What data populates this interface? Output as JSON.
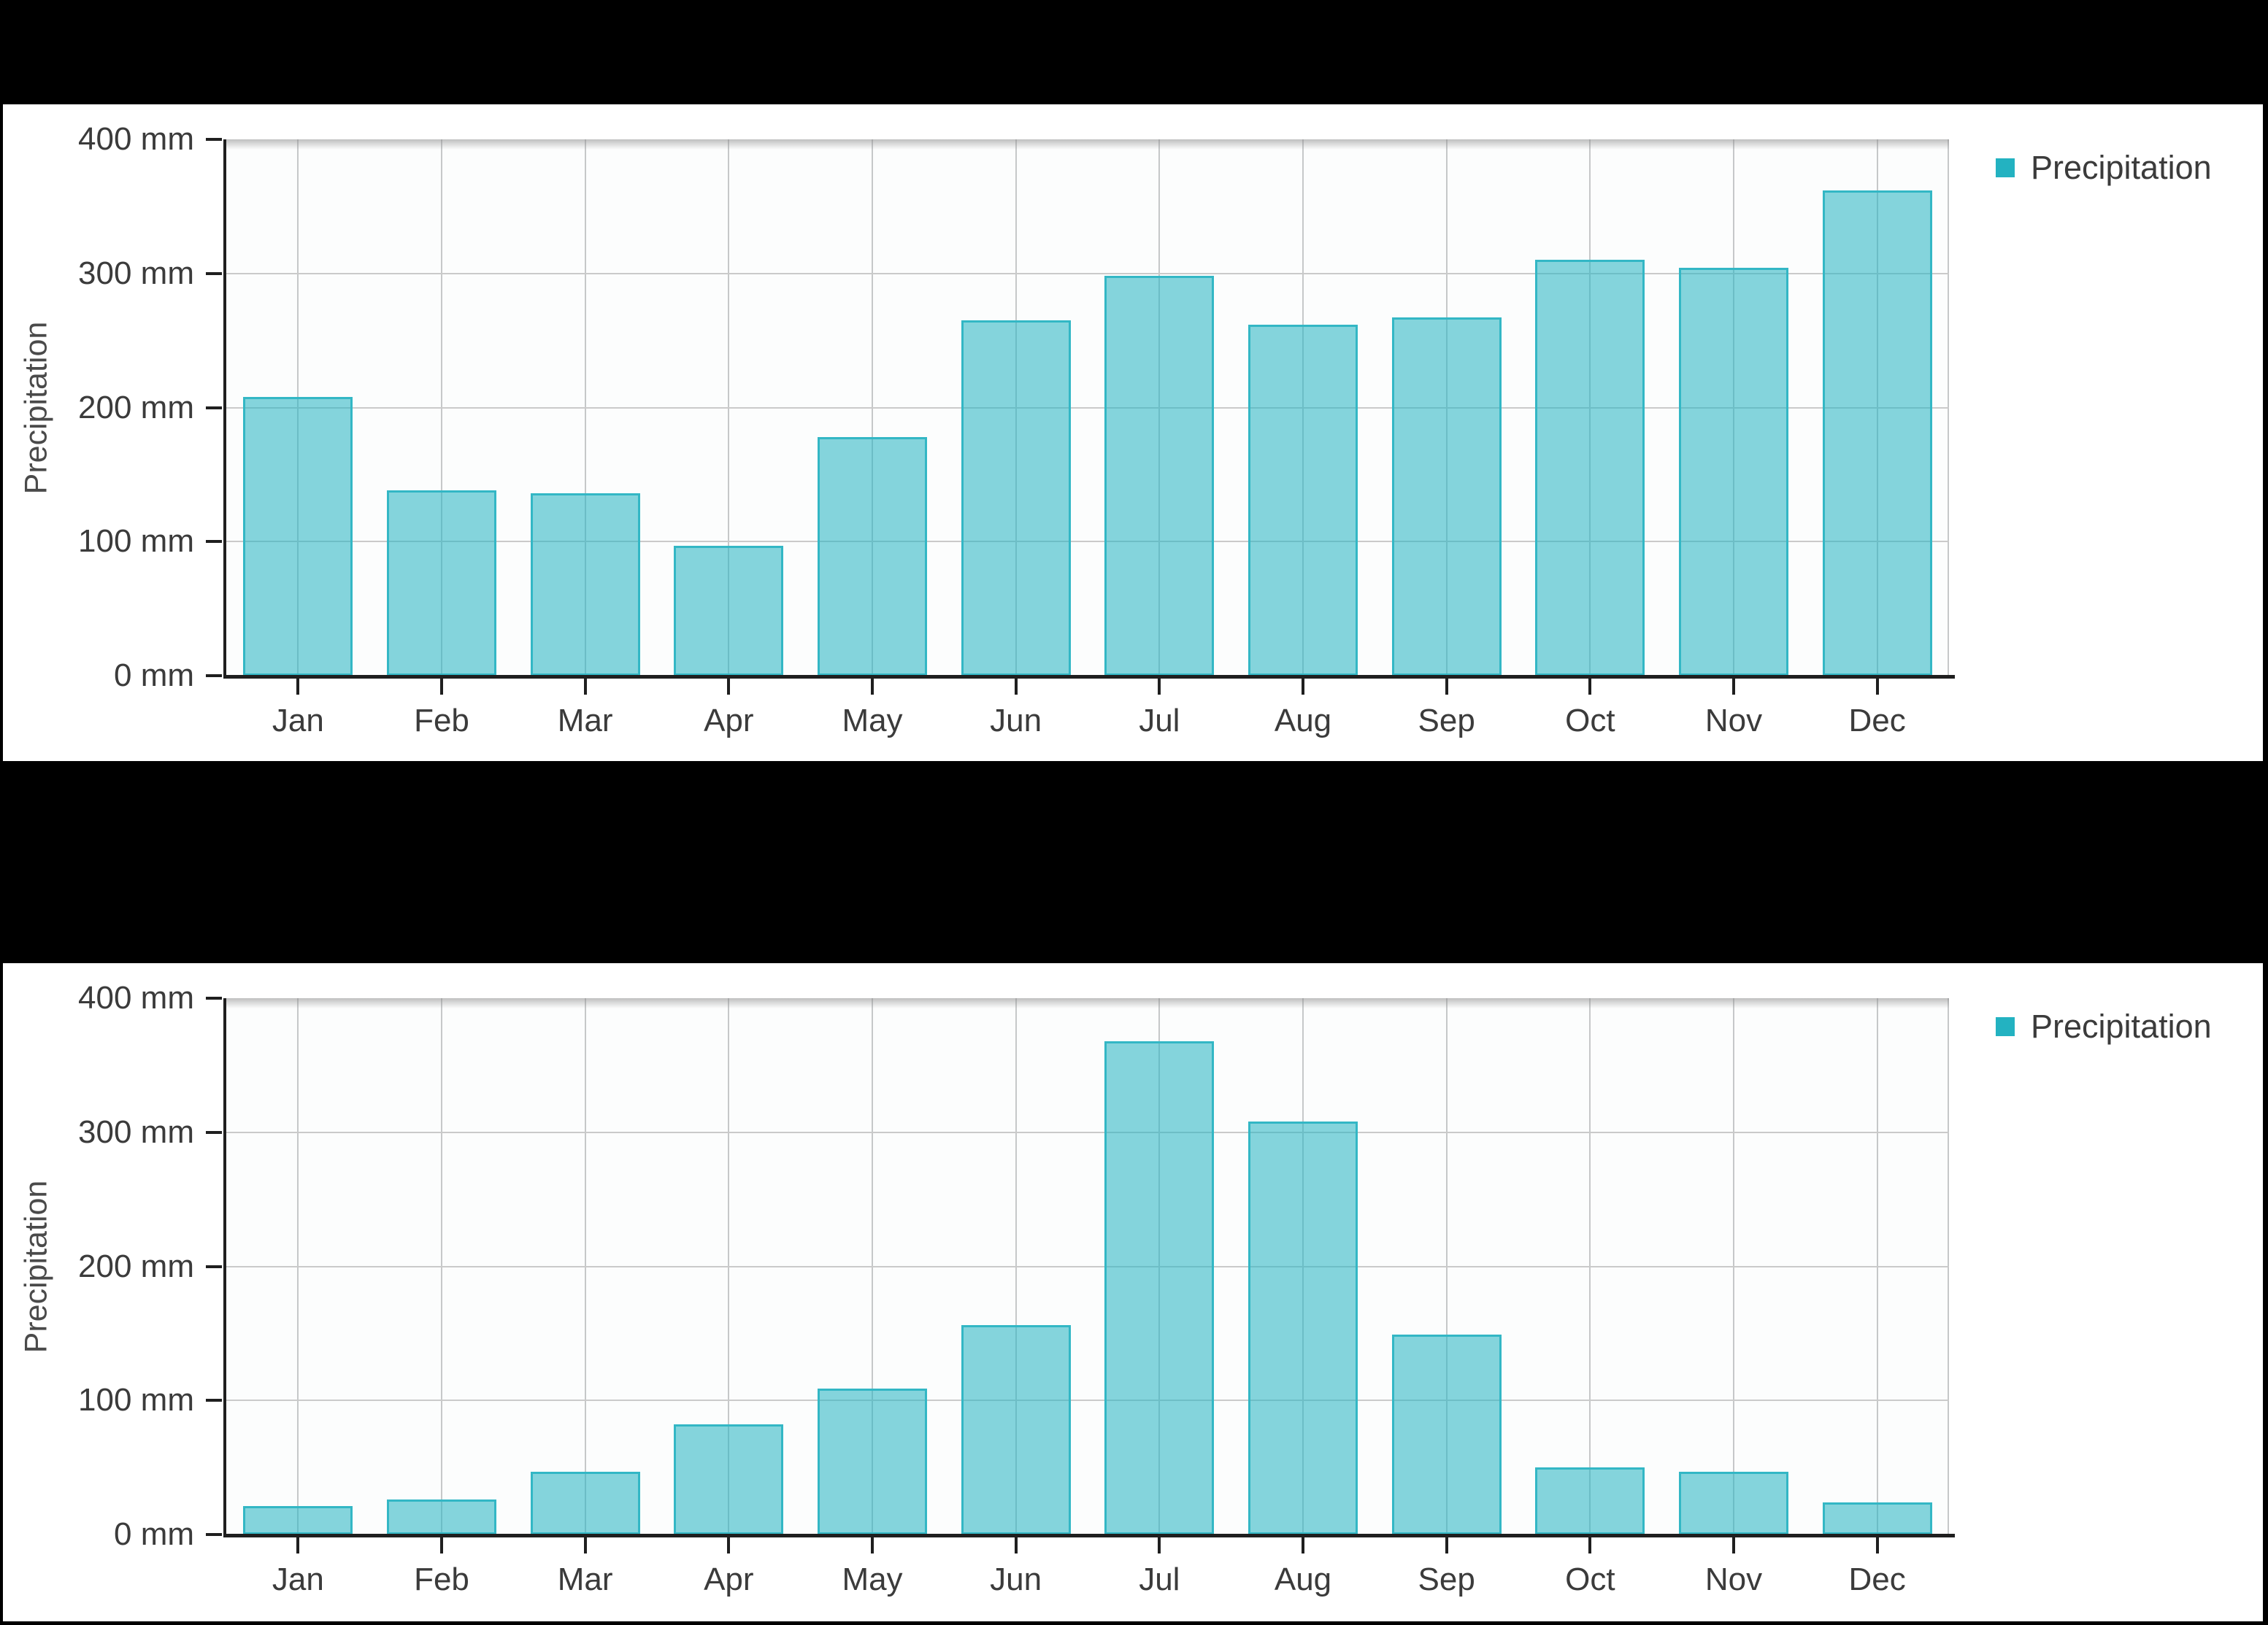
{
  "page": {
    "background": "#000000",
    "panel_background": "#ffffff"
  },
  "colors": {
    "bar_fill": "rgba(41,182,196,0.57)",
    "bar_border": "#33b7c5",
    "legend_square": "#23b2c1",
    "axis": "#1f1f1f",
    "gridline": "#c8c8c8",
    "text": "#3b3b3b"
  },
  "chart_data": [
    {
      "type": "bar",
      "title": "",
      "categories": [
        "Jan",
        "Feb",
        "Mar",
        "Apr",
        "May",
        "Jun",
        "Jul",
        "Aug",
        "Sep",
        "Oct",
        "Nov",
        "Dec"
      ],
      "series": [
        {
          "name": "Precipitation",
          "values": [
            208,
            138,
            136,
            97,
            178,
            265,
            298,
            262,
            267,
            310,
            304,
            362
          ]
        }
      ],
      "xlabel": "",
      "ylabel": "Precipitation",
      "unit": "mm",
      "ylim": [
        0,
        400
      ],
      "ytick_values": [
        0,
        100,
        200,
        300,
        400
      ],
      "ytick_labels": [
        "0 mm",
        "100 mm",
        "200 mm",
        "300 mm",
        "400 mm"
      ],
      "legend": [
        "Precipitation"
      ],
      "legend_position": "top-right",
      "grid": true
    },
    {
      "type": "bar",
      "title": "",
      "categories": [
        "Jan",
        "Feb",
        "Mar",
        "Apr",
        "May",
        "Jun",
        "Jul",
        "Aug",
        "Sep",
        "Oct",
        "Nov",
        "Dec"
      ],
      "series": [
        {
          "name": "Precipitation",
          "values": [
            21,
            26,
            47,
            82,
            109,
            156,
            368,
            308,
            149,
            50,
            47,
            24
          ]
        }
      ],
      "xlabel": "",
      "ylabel": "Precipitation",
      "unit": "mm",
      "ylim": [
        0,
        400
      ],
      "ytick_values": [
        0,
        100,
        200,
        300,
        400
      ],
      "ytick_labels": [
        "0 mm",
        "100 mm",
        "200 mm",
        "300 mm",
        "400 mm"
      ],
      "legend": [
        "Precipitation"
      ],
      "legend_position": "top-right",
      "grid": true
    }
  ]
}
